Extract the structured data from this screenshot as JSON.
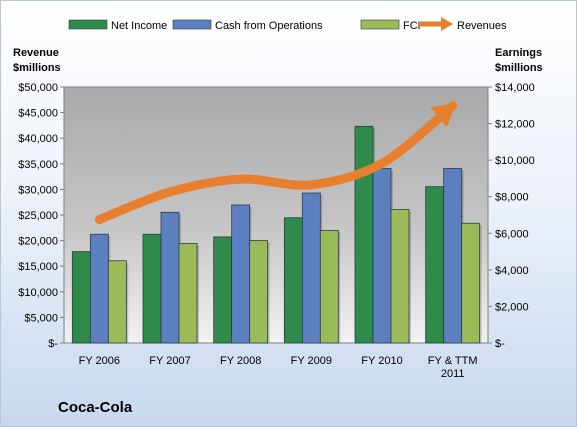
{
  "brand": "Coca-Cola",
  "chart_data": {
    "type": "bar",
    "categories": [
      "FY 2006",
      "FY 2007",
      "FY 2008",
      "FY 2009",
      "FY 2010",
      "FY & TTM 2011"
    ],
    "category_lines": [
      [
        "FY 2006"
      ],
      [
        "FY 2007"
      ],
      [
        "FY 2008"
      ],
      [
        "FY 2009"
      ],
      [
        "FY 2010"
      ],
      [
        "FY & TTM",
        "2011"
      ]
    ],
    "left_axis": {
      "title_lines": [
        "Revenue",
        "$millions"
      ],
      "range": [
        0,
        50000
      ],
      "ticks": [
        0,
        5000,
        10000,
        15000,
        20000,
        25000,
        30000,
        35000,
        40000,
        45000,
        50000
      ],
      "tick_labels": [
        "$-",
        "$5,000",
        "$10,000",
        "$15,000",
        "$20,000",
        "$25,000",
        "$30,000",
        "$35,000",
        "$40,000",
        "$45,000",
        "$50,000"
      ]
    },
    "right_axis": {
      "title_lines": [
        "Earnings",
        "$millions"
      ],
      "range": [
        0,
        14000
      ],
      "ticks": [
        0,
        2000,
        4000,
        6000,
        8000,
        10000,
        12000,
        14000
      ],
      "tick_labels": [
        "$-",
        "$2,000",
        "$4,000",
        "$6,000",
        "$8,000",
        "$10,000",
        "$12,000",
        "$14,000"
      ]
    },
    "series": [
      {
        "name": "Net Income",
        "kind": "bar",
        "axis": "right",
        "color": "#2e8b4a",
        "values": [
          5000,
          5950,
          5800,
          6850,
          11850,
          8550
        ]
      },
      {
        "name": "Cash from Operations",
        "kind": "bar",
        "axis": "right",
        "color": "#5b7fbf",
        "values": [
          5950,
          7150,
          7550,
          8200,
          9550,
          9550
        ]
      },
      {
        "name": "FCF",
        "kind": "bar",
        "axis": "right",
        "color": "#9bbb59",
        "values": [
          4500,
          5450,
          5600,
          6150,
          7300,
          6550
        ]
      },
      {
        "name": "Revenues",
        "kind": "arrow",
        "axis": "left",
        "color": "#e87f2e",
        "values": [
          24100,
          29500,
          32000,
          30900,
          35100,
          46300
        ]
      }
    ],
    "grid": false,
    "legend": "top"
  }
}
